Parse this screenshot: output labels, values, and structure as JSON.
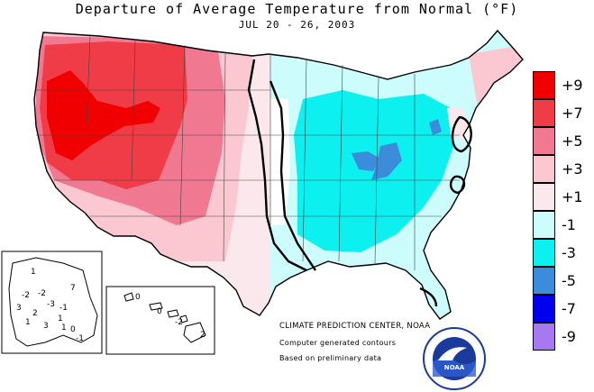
{
  "header": {
    "title": "Departure of Average Temperature from Normal (°F)",
    "subtitle": "JUL 20 - 26, 2003"
  },
  "legend": {
    "items": [
      {
        "label": "+9",
        "color": "#f00000"
      },
      {
        "label": "+7",
        "color": "#f03c46"
      },
      {
        "label": "+5",
        "color": "#f07890"
      },
      {
        "label": "+3",
        "color": "#fbc8d2"
      },
      {
        "label": "+1",
        "color": "#fbe8ec"
      },
      {
        "label": "-1",
        "color": "#ccfcfc"
      },
      {
        "label": "-3",
        "color": "#0cf0f0"
      },
      {
        "label": "-5",
        "color": "#3c8cdc"
      },
      {
        "label": "-7",
        "color": "#0000ee"
      },
      {
        "label": "-9",
        "color": "#a878f0"
      }
    ]
  },
  "credits": {
    "center": "CLIMATE PREDICTION CENTER, NOAA",
    "line2": "Computer generated contours",
    "line3": "Based on preliminary data",
    "logo_text": "NOAA"
  },
  "alaska_labels": [
    "1",
    "-2",
    "-2",
    "-3",
    "3",
    "2",
    "1",
    "3",
    "1",
    "7",
    "-1",
    "1",
    "0",
    "-1"
  ],
  "hawaii_labels": [
    "0",
    "0",
    "-2",
    "2"
  ]
}
